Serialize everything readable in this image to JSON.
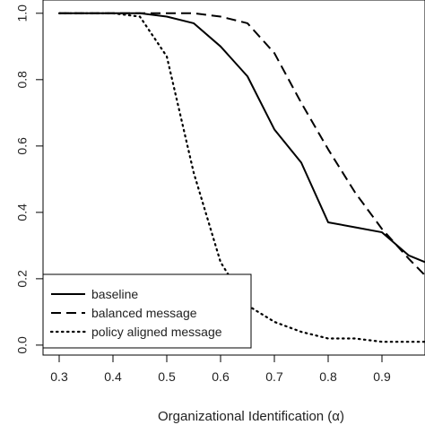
{
  "chart_data": {
    "type": "line",
    "title": "",
    "xlabel": "Organizational Identification (α)",
    "ylabel": "",
    "xlim": [
      0.27,
      0.98
    ],
    "ylim": [
      -0.03,
      1.04
    ],
    "xticks": [
      0.3,
      0.4,
      0.5,
      0.6,
      0.7,
      0.8,
      0.9
    ],
    "xtick_labels": [
      "0.3",
      "0.4",
      "0.5",
      "0.6",
      "0.7",
      "0.8",
      "0.9"
    ],
    "yticks": [
      0.0,
      0.2,
      0.4,
      0.6,
      0.8,
      1.0
    ],
    "ytick_labels": [
      "0.0",
      "0.2",
      "0.4",
      "0.6",
      "0.8",
      "1.0"
    ],
    "grid": false,
    "legend_position": "bottom-left",
    "series": [
      {
        "name": "baseline",
        "dash": "solid",
        "color": "#000000",
        "x": [
          0.3,
          0.35,
          0.4,
          0.45,
          0.5,
          0.55,
          0.6,
          0.65,
          0.7,
          0.75,
          0.8,
          0.85,
          0.9,
          0.95,
          0.98
        ],
        "y": [
          1.0,
          1.0,
          1.0,
          1.0,
          0.99,
          0.97,
          0.9,
          0.81,
          0.65,
          0.55,
          0.37,
          0.355,
          0.34,
          0.27,
          0.25
        ]
      },
      {
        "name": "balanced message",
        "dash": "dashed",
        "color": "#000000",
        "x": [
          0.3,
          0.35,
          0.4,
          0.45,
          0.5,
          0.55,
          0.6,
          0.65,
          0.7,
          0.75,
          0.8,
          0.85,
          0.9,
          0.95,
          0.98
        ],
        "y": [
          1.0,
          1.0,
          1.0,
          1.0,
          1.0,
          1.0,
          0.99,
          0.97,
          0.88,
          0.73,
          0.59,
          0.46,
          0.35,
          0.26,
          0.21
        ]
      },
      {
        "name": "policy aligned message",
        "dash": "dotted",
        "color": "#000000",
        "x": [
          0.3,
          0.35,
          0.4,
          0.45,
          0.5,
          0.55,
          0.6,
          0.65,
          0.7,
          0.75,
          0.8,
          0.85,
          0.9,
          0.95,
          0.98
        ],
        "y": [
          1.0,
          1.0,
          1.0,
          0.99,
          0.87,
          0.52,
          0.25,
          0.12,
          0.07,
          0.04,
          0.02,
          0.02,
          0.01,
          0.01,
          0.01
        ]
      }
    ]
  }
}
